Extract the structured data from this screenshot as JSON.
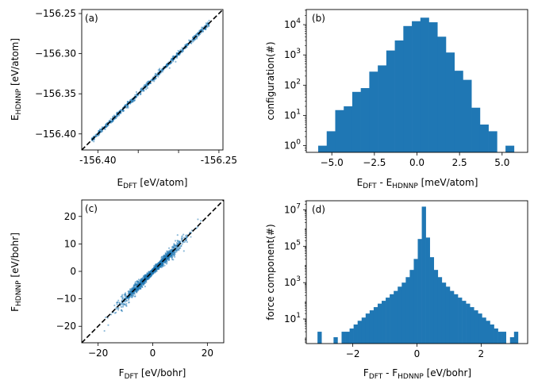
{
  "colors": {
    "series": "#1f77b4",
    "reference_line": "#000000"
  },
  "chart_data": [
    {
      "panel": "(a)",
      "type": "scatter",
      "xlabel_main": "E",
      "xlabel_sub": "DFT",
      "xlabel_rest": " [eV/atom]",
      "ylabel_main": "E",
      "ylabel_sub": "HDNNP",
      "ylabel_rest": " [eV/atom]",
      "xlim": [
        -156.42,
        -156.245
      ],
      "ylim": [
        -156.42,
        -156.245
      ],
      "xtick_labels": [
        {
          "v": -156.4,
          "t": "-156.40"
        },
        {
          "v": -156.35,
          "t": ""
        },
        {
          "v": -156.3,
          "t": ""
        },
        {
          "v": -156.25,
          "t": "-156.25"
        }
      ],
      "ytick_labels": [
        {
          "v": -156.4,
          "t": "−156.40"
        },
        {
          "v": -156.35,
          "t": "−156.35"
        },
        {
          "v": -156.3,
          "t": "−156.30"
        },
        {
          "v": -156.25,
          "t": "−156.25"
        }
      ],
      "data_range": [
        -156.408,
        -156.262
      ],
      "spread": 0.0016,
      "reference": "y = x"
    },
    {
      "panel": "(b)",
      "type": "bar",
      "xlabel_main": "E",
      "xlabel_sub": "DFT",
      "xlabel_sep": " - E",
      "xlabel_sub2": "HDNNP",
      "xlabel_rest": " [meV/atom]",
      "ylabel": "configuration(#)",
      "yscale": "log",
      "xlim": [
        -6.5,
        6.5
      ],
      "ylim_log": [
        -0.22,
        4.5
      ],
      "xtick_labels": [
        {
          "v": -5.0,
          "t": "−5.0"
        },
        {
          "v": -2.5,
          "t": "−2.5"
        },
        {
          "v": 0.0,
          "t": "0.0"
        },
        {
          "v": 2.5,
          "t": "2.5"
        },
        {
          "v": 5.0,
          "t": "5.0"
        }
      ],
      "ytick_labels": [
        {
          "p": 0,
          "t": "10",
          "e": "0"
        },
        {
          "p": 1,
          "t": "10",
          "e": "1"
        },
        {
          "p": 2,
          "t": "10",
          "e": "2"
        },
        {
          "p": 3,
          "t": "10",
          "e": "3"
        },
        {
          "p": 4,
          "t": "10",
          "e": "4"
        }
      ],
      "bin_edges": [
        -5.8,
        -5.3,
        -4.8,
        -4.3,
        -3.8,
        -3.3,
        -2.8,
        -2.3,
        -1.8,
        -1.3,
        -0.8,
        -0.3,
        0.2,
        0.7,
        1.2,
        1.7,
        2.2,
        2.7,
        3.2,
        3.7,
        4.2,
        4.7,
        5.2,
        5.7
      ],
      "counts": [
        1,
        3,
        15,
        20,
        60,
        80,
        280,
        450,
        1400,
        3000,
        9000,
        13000,
        17000,
        12000,
        4000,
        1200,
        300,
        150,
        18,
        5,
        3,
        0,
        1
      ]
    },
    {
      "panel": "(c)",
      "type": "scatter",
      "xlabel_main": "F",
      "xlabel_sub": "DFT",
      "xlabel_rest": " [eV/bohr]",
      "ylabel_main": "F",
      "ylabel_sub": "HDNNP",
      "ylabel_rest": " [eV/bohr]",
      "xlim": [
        -26,
        26
      ],
      "ylim": [
        -26,
        26
      ],
      "xtick_labels": [
        {
          "v": -20,
          "t": "−20"
        },
        {
          "v": 0,
          "t": "0"
        },
        {
          "v": 20,
          "t": "20"
        }
      ],
      "ytick_labels": [
        {
          "v": -20,
          "t": "−20"
        },
        {
          "v": -10,
          "t": "−10"
        },
        {
          "v": 0,
          "t": "0"
        },
        {
          "v": 10,
          "t": "10"
        },
        {
          "v": 20,
          "t": "20"
        }
      ],
      "data_range": [
        -22,
        22
      ],
      "spread": 0.8,
      "reference": "y = x"
    },
    {
      "panel": "(d)",
      "type": "bar",
      "xlabel_main": "F",
      "xlabel_sub": "DFT",
      "xlabel_sep": " - F",
      "xlabel_sub2": "HDNNP",
      "xlabel_rest": " [eV/bohr]",
      "ylabel": "force component(#)",
      "yscale": "log",
      "xlim": [
        -3.45,
        3.45
      ],
      "ylim_log": [
        -0.35,
        7.5
      ],
      "xtick_labels": [
        {
          "v": -2,
          "t": "−2"
        },
        {
          "v": 0,
          "t": "0"
        },
        {
          "v": 2,
          "t": "2"
        }
      ],
      "ytick_labels": [
        {
          "p": 1,
          "t": "10",
          "e": "1"
        },
        {
          "p": 3,
          "t": "10",
          "e": "3"
        },
        {
          "p": 5,
          "t": "10",
          "e": "5"
        },
        {
          "p": 7,
          "t": "10",
          "e": "7"
        }
      ],
      "bin_start": -3.1,
      "bin_width": 0.125,
      "counts": [
        2,
        0,
        0,
        0,
        1,
        0,
        2,
        2,
        3,
        5,
        8,
        12,
        20,
        30,
        45,
        70,
        100,
        150,
        230,
        350,
        600,
        1000,
        2000,
        5000,
        20000,
        250000,
        15000000,
        300000,
        25000,
        5000,
        2000,
        1000,
        600,
        350,
        230,
        150,
        100,
        70,
        45,
        30,
        20,
        12,
        8,
        5,
        3,
        2,
        2,
        0,
        1,
        2
      ]
    }
  ]
}
